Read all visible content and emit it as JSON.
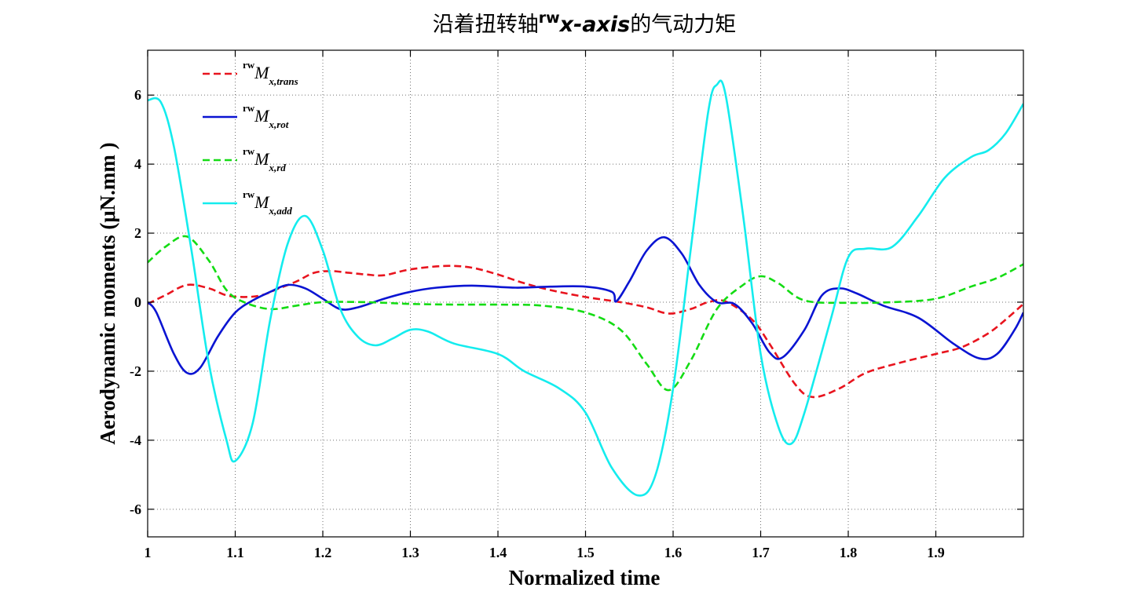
{
  "chart_data": {
    "type": "line",
    "title": {
      "prefix": "沿着扭转轴",
      "superscript": "rw",
      "italic": "x-axis",
      "suffix": "的气动力矩"
    },
    "xlabel": "Normalized time",
    "ylabel": "Aerodynamic moments  (μN.mm )",
    "xlim": [
      1.0,
      2.0
    ],
    "ylim": [
      -6.8,
      7.3
    ],
    "xticks": [
      1.0,
      1.1,
      1.2,
      1.3,
      1.4,
      1.5,
      1.6,
      1.7,
      1.8,
      1.9
    ],
    "xtick_labels": [
      "1",
      "1.1",
      "1.2",
      "1.3",
      "1.4",
      "1.5",
      "1.6",
      "1.7",
      "1.8",
      "1.9"
    ],
    "yticks": [
      -6,
      -4,
      -2,
      0,
      2,
      4,
      6
    ],
    "ytick_labels": [
      "-6",
      "-4",
      "-2",
      "0",
      "2",
      "4",
      "6"
    ],
    "grid": true,
    "legend_position": "top-left",
    "series": [
      {
        "name": "rwMx,trans",
        "legend": {
          "sup": "rw",
          "main": "M",
          "sub": "x,trans"
        },
        "color": "#e8141e",
        "style": "dashed",
        "points": [
          [
            1.0,
            -0.05
          ],
          [
            1.02,
            0.2
          ],
          [
            1.045,
            0.5
          ],
          [
            1.07,
            0.4
          ],
          [
            1.09,
            0.2
          ],
          [
            1.11,
            0.15
          ],
          [
            1.13,
            0.2
          ],
          [
            1.15,
            0.4
          ],
          [
            1.17,
            0.6
          ],
          [
            1.19,
            0.85
          ],
          [
            1.21,
            0.9
          ],
          [
            1.23,
            0.85
          ],
          [
            1.25,
            0.8
          ],
          [
            1.27,
            0.78
          ],
          [
            1.3,
            0.95
          ],
          [
            1.34,
            1.05
          ],
          [
            1.37,
            1.0
          ],
          [
            1.4,
            0.8
          ],
          [
            1.43,
            0.55
          ],
          [
            1.46,
            0.35
          ],
          [
            1.5,
            0.15
          ],
          [
            1.54,
            0.0
          ],
          [
            1.57,
            -0.15
          ],
          [
            1.595,
            -0.33
          ],
          [
            1.62,
            -0.2
          ],
          [
            1.64,
            0.0
          ],
          [
            1.66,
            0.02
          ],
          [
            1.69,
            -0.5
          ],
          [
            1.71,
            -1.2
          ],
          [
            1.74,
            -2.4
          ],
          [
            1.76,
            -2.75
          ],
          [
            1.79,
            -2.5
          ],
          [
            1.82,
            -2.05
          ],
          [
            1.86,
            -1.75
          ],
          [
            1.9,
            -1.5
          ],
          [
            1.93,
            -1.3
          ],
          [
            1.96,
            -0.9
          ],
          [
            1.98,
            -0.5
          ],
          [
            2.0,
            -0.05
          ]
        ]
      },
      {
        "name": "rwMx,rot",
        "legend": {
          "sup": "rw",
          "main": "M",
          "sub": "x,rot"
        },
        "color": "#0a14d2",
        "style": "solid",
        "points": [
          [
            1.0,
            0.0
          ],
          [
            1.01,
            -0.3
          ],
          [
            1.03,
            -1.5
          ],
          [
            1.045,
            -2.05
          ],
          [
            1.06,
            -1.9
          ],
          [
            1.08,
            -1.0
          ],
          [
            1.1,
            -0.3
          ],
          [
            1.12,
            0.05
          ],
          [
            1.14,
            0.3
          ],
          [
            1.16,
            0.5
          ],
          [
            1.18,
            0.4
          ],
          [
            1.2,
            0.1
          ],
          [
            1.22,
            -0.2
          ],
          [
            1.24,
            -0.15
          ],
          [
            1.27,
            0.1
          ],
          [
            1.3,
            0.3
          ],
          [
            1.33,
            0.42
          ],
          [
            1.37,
            0.48
          ],
          [
            1.42,
            0.42
          ],
          [
            1.46,
            0.45
          ],
          [
            1.5,
            0.45
          ],
          [
            1.53,
            0.3
          ],
          [
            1.535,
            0.02
          ],
          [
            1.55,
            0.6
          ],
          [
            1.57,
            1.5
          ],
          [
            1.59,
            1.88
          ],
          [
            1.61,
            1.4
          ],
          [
            1.63,
            0.5
          ],
          [
            1.65,
            0.0
          ],
          [
            1.67,
            -0.05
          ],
          [
            1.69,
            -0.6
          ],
          [
            1.71,
            -1.45
          ],
          [
            1.725,
            -1.6
          ],
          [
            1.75,
            -0.8
          ],
          [
            1.77,
            0.2
          ],
          [
            1.79,
            0.4
          ],
          [
            1.81,
            0.25
          ],
          [
            1.84,
            -0.1
          ],
          [
            1.88,
            -0.45
          ],
          [
            1.92,
            -1.2
          ],
          [
            1.95,
            -1.63
          ],
          [
            1.97,
            -1.5
          ],
          [
            1.99,
            -0.8
          ],
          [
            2.0,
            -0.3
          ]
        ]
      },
      {
        "name": "rwMx,rd",
        "legend": {
          "sup": "rw",
          "main": "M",
          "sub": "x,rd"
        },
        "color": "#14dc14",
        "style": "dashed",
        "points": [
          [
            1.0,
            1.15
          ],
          [
            1.02,
            1.6
          ],
          [
            1.045,
            1.9
          ],
          [
            1.07,
            1.2
          ],
          [
            1.09,
            0.35
          ],
          [
            1.11,
            0.0
          ],
          [
            1.14,
            -0.2
          ],
          [
            1.17,
            -0.1
          ],
          [
            1.2,
            0.0
          ],
          [
            1.25,
            0.0
          ],
          [
            1.3,
            -0.05
          ],
          [
            1.35,
            -0.07
          ],
          [
            1.4,
            -0.07
          ],
          [
            1.45,
            -0.1
          ],
          [
            1.5,
            -0.3
          ],
          [
            1.54,
            -0.8
          ],
          [
            1.57,
            -1.8
          ],
          [
            1.595,
            -2.55
          ],
          [
            1.62,
            -1.7
          ],
          [
            1.65,
            -0.2
          ],
          [
            1.68,
            0.5
          ],
          [
            1.7,
            0.75
          ],
          [
            1.72,
            0.55
          ],
          [
            1.75,
            0.05
          ],
          [
            1.8,
            -0.02
          ],
          [
            1.85,
            0.0
          ],
          [
            1.9,
            0.1
          ],
          [
            1.94,
            0.45
          ],
          [
            1.97,
            0.7
          ],
          [
            2.0,
            1.1
          ]
        ]
      },
      {
        "name": "rwMx,add",
        "legend": {
          "sup": "rw",
          "main": "M",
          "sub": "x,add"
        },
        "color": "#14ecee",
        "style": "solid",
        "points": [
          [
            1.0,
            5.85
          ],
          [
            1.015,
            5.8
          ],
          [
            1.03,
            4.5
          ],
          [
            1.05,
            1.5
          ],
          [
            1.07,
            -1.8
          ],
          [
            1.09,
            -4.0
          ],
          [
            1.1,
            -4.6
          ],
          [
            1.12,
            -3.5
          ],
          [
            1.14,
            -0.5
          ],
          [
            1.16,
            1.7
          ],
          [
            1.18,
            2.5
          ],
          [
            1.2,
            1.5
          ],
          [
            1.22,
            -0.2
          ],
          [
            1.24,
            -1.0
          ],
          [
            1.26,
            -1.25
          ],
          [
            1.28,
            -1.05
          ],
          [
            1.3,
            -0.8
          ],
          [
            1.32,
            -0.85
          ],
          [
            1.35,
            -1.2
          ],
          [
            1.4,
            -1.5
          ],
          [
            1.43,
            -2.0
          ],
          [
            1.47,
            -2.5
          ],
          [
            1.5,
            -3.2
          ],
          [
            1.53,
            -4.8
          ],
          [
            1.56,
            -5.6
          ],
          [
            1.58,
            -5.0
          ],
          [
            1.6,
            -2.5
          ],
          [
            1.62,
            1.5
          ],
          [
            1.64,
            5.5
          ],
          [
            1.65,
            6.3
          ],
          [
            1.66,
            6.0
          ],
          [
            1.68,
            2.5
          ],
          [
            1.7,
            -1.5
          ],
          [
            1.72,
            -3.6
          ],
          [
            1.735,
            -4.1
          ],
          [
            1.75,
            -3.2
          ],
          [
            1.78,
            -0.5
          ],
          [
            1.8,
            1.3
          ],
          [
            1.82,
            1.55
          ],
          [
            1.85,
            1.6
          ],
          [
            1.88,
            2.5
          ],
          [
            1.91,
            3.6
          ],
          [
            1.94,
            4.2
          ],
          [
            1.96,
            4.4
          ],
          [
            1.98,
            4.9
          ],
          [
            2.0,
            5.75
          ]
        ]
      }
    ]
  }
}
